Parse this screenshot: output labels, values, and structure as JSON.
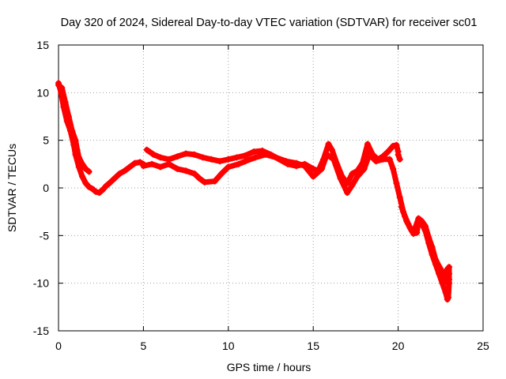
{
  "chart_data": {
    "type": "scatter",
    "title": "Day 320 of 2024, Sidereal Day-to-day VTEC variation (SDTVAR) for receiver sc01",
    "xlabel": "GPS time / hours",
    "ylabel": "SDTVAR / TECUs",
    "xlim": [
      0,
      25
    ],
    "ylim": [
      -15,
      15
    ],
    "xticks": [
      0,
      5,
      10,
      15,
      20,
      25
    ],
    "yticks": [
      -15,
      -10,
      -5,
      0,
      5,
      10,
      15
    ],
    "grid": true,
    "marker": "+",
    "color": "#ff0000",
    "series": [
      {
        "name": "sc01 track A",
        "points": [
          [
            0.0,
            11.0
          ],
          [
            0.15,
            10.0
          ],
          [
            0.3,
            8.5
          ],
          [
            0.5,
            7.0
          ],
          [
            0.7,
            6.0
          ],
          [
            0.9,
            4.5
          ],
          [
            1.0,
            3.5
          ],
          [
            1.2,
            2.2
          ],
          [
            1.4,
            1.2
          ],
          [
            1.6,
            0.5
          ],
          [
            1.8,
            0.1
          ],
          [
            2.0,
            -0.1
          ],
          [
            2.2,
            -0.4
          ],
          [
            2.4,
            -0.5
          ],
          [
            2.6,
            -0.2
          ],
          [
            2.8,
            0.2
          ],
          [
            3.0,
            0.5
          ],
          [
            3.3,
            1.0
          ],
          [
            3.6,
            1.5
          ],
          [
            3.9,
            1.8
          ],
          [
            4.2,
            2.2
          ],
          [
            4.5,
            2.6
          ],
          [
            4.8,
            2.7
          ],
          [
            5.0,
            2.5
          ]
        ]
      },
      {
        "name": "sc01 track A upper branch",
        "points": [
          [
            0.0,
            10.8
          ],
          [
            0.2,
            10.5
          ],
          [
            0.4,
            9.0
          ],
          [
            0.6,
            7.5
          ],
          [
            0.8,
            6.0
          ],
          [
            1.0,
            5.0
          ],
          [
            1.1,
            4.0
          ],
          [
            1.2,
            3.2
          ],
          [
            1.4,
            2.5
          ],
          [
            1.6,
            2.0
          ],
          [
            1.8,
            1.7
          ]
        ]
      },
      {
        "name": "sc01 track B",
        "points": [
          [
            5.2,
            4.0
          ],
          [
            5.6,
            3.5
          ],
          [
            6.0,
            3.2
          ],
          [
            6.5,
            3.0
          ],
          [
            7.0,
            3.3
          ],
          [
            7.5,
            3.6
          ],
          [
            8.0,
            3.5
          ],
          [
            8.5,
            3.2
          ],
          [
            9.0,
            3.0
          ],
          [
            9.5,
            2.8
          ],
          [
            10.0,
            3.0
          ],
          [
            10.5,
            3.2
          ],
          [
            11.0,
            3.4
          ],
          [
            11.5,
            3.8
          ],
          [
            12.0,
            3.9
          ],
          [
            12.5,
            3.5
          ],
          [
            13.0,
            3.0
          ],
          [
            13.5,
            2.5
          ],
          [
            14.0,
            2.3
          ],
          [
            14.5,
            2.5
          ],
          [
            15.0,
            2.0
          ],
          [
            15.3,
            1.8
          ],
          [
            15.6,
            3.0
          ],
          [
            15.9,
            4.6
          ],
          [
            16.1,
            4.0
          ],
          [
            16.4,
            2.5
          ],
          [
            16.7,
            1.2
          ],
          [
            17.0,
            0.5
          ],
          [
            17.3,
            1.5
          ],
          [
            17.6,
            1.8
          ],
          [
            17.9,
            2.6
          ],
          [
            18.2,
            4.6
          ],
          [
            18.5,
            3.5
          ],
          [
            18.8,
            3.0
          ],
          [
            19.1,
            3.3
          ],
          [
            19.4,
            3.8
          ],
          [
            19.7,
            4.4
          ],
          [
            19.9,
            4.5
          ],
          [
            20.0,
            3.8
          ]
        ]
      },
      {
        "name": "sc01 track B lower branch",
        "points": [
          [
            5.0,
            2.3
          ],
          [
            5.5,
            2.5
          ],
          [
            6.0,
            2.2
          ],
          [
            6.5,
            2.5
          ],
          [
            7.0,
            2.0
          ],
          [
            7.5,
            1.8
          ],
          [
            8.0,
            1.5
          ],
          [
            8.3,
            1.0
          ],
          [
            8.6,
            0.6
          ],
          [
            9.2,
            0.7
          ],
          [
            9.6,
            1.5
          ],
          [
            10.0,
            2.2
          ],
          [
            10.6,
            2.5
          ],
          [
            11.0,
            2.8
          ],
          [
            11.6,
            3.2
          ],
          [
            12.2,
            3.5
          ],
          [
            12.8,
            3.2
          ],
          [
            13.4,
            2.8
          ],
          [
            14.0,
            2.6
          ],
          [
            14.5,
            2.3
          ],
          [
            15.0,
            1.2
          ],
          [
            15.5,
            2.0
          ],
          [
            15.8,
            3.5
          ],
          [
            16.2,
            3.0
          ],
          [
            16.6,
            1.0
          ],
          [
            17.0,
            -0.5
          ],
          [
            17.3,
            0.3
          ],
          [
            17.6,
            1.2
          ],
          [
            18.0,
            2.0
          ],
          [
            18.3,
            3.5
          ],
          [
            18.7,
            2.8
          ],
          [
            19.1,
            3.0
          ],
          [
            19.5,
            3.0
          ],
          [
            19.7,
            2.0
          ],
          [
            19.9,
            0.5
          ],
          [
            20.1,
            -1.0
          ],
          [
            20.3,
            -2.5
          ],
          [
            20.5,
            -3.5
          ],
          [
            20.7,
            -4.2
          ],
          [
            20.9,
            -4.8
          ],
          [
            21.1,
            -4.7
          ],
          [
            21.2,
            -3.5
          ],
          [
            21.4,
            -3.8
          ],
          [
            21.6,
            -4.5
          ],
          [
            21.8,
            -5.8
          ],
          [
            22.0,
            -7.0
          ],
          [
            22.2,
            -8.0
          ],
          [
            22.4,
            -9.0
          ],
          [
            22.6,
            -10.0
          ],
          [
            22.8,
            -11.0
          ],
          [
            22.9,
            -11.7
          ],
          [
            22.95,
            -11.5
          ],
          [
            23.0,
            -10.0
          ],
          [
            23.0,
            -9.0
          ],
          [
            23.0,
            -8.3
          ]
        ]
      },
      {
        "name": "sc01 track C",
        "points": [
          [
            20.1,
            3.0
          ],
          [
            20.0,
            3.5
          ]
        ]
      },
      {
        "name": "sc01 track D",
        "points": [
          [
            20.2,
            -2.0
          ],
          [
            20.4,
            -3.0
          ],
          [
            20.6,
            -3.8
          ],
          [
            20.8,
            -4.5
          ],
          [
            21.0,
            -4.2
          ],
          [
            21.2,
            -3.2
          ],
          [
            21.4,
            -3.5
          ],
          [
            21.6,
            -4.0
          ],
          [
            21.8,
            -5.2
          ],
          [
            22.0,
            -6.2
          ],
          [
            22.2,
            -7.5
          ],
          [
            22.4,
            -8.2
          ],
          [
            22.6,
            -8.8
          ],
          [
            22.8,
            -9.5
          ],
          [
            22.95,
            -10.0
          ],
          [
            23.0,
            -9.6
          ],
          [
            22.8,
            -9.0
          ],
          [
            22.9,
            -8.5
          ]
        ]
      }
    ]
  }
}
